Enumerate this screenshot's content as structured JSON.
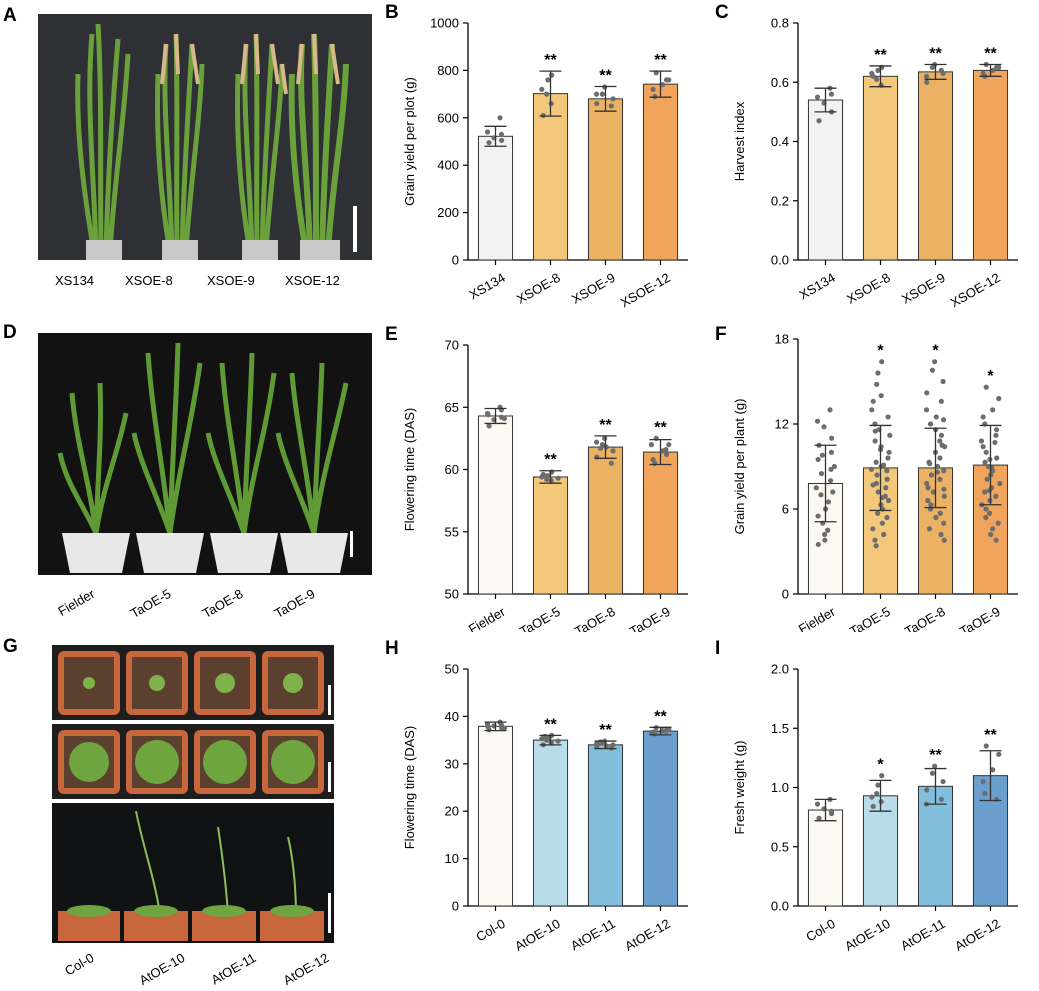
{
  "panels": {
    "A": {
      "letter": "A",
      "labels": [
        "XS134",
        "XSOE-8",
        "XSOE-9",
        "XSOE-12"
      ]
    },
    "D": {
      "letter": "D",
      "labels": [
        "Fielder",
        "TaOE-5",
        "TaOE-8",
        "TaOE-9"
      ]
    },
    "G": {
      "letter": "G",
      "labels": [
        "Col-0",
        "AtOE-10",
        "AtOE-11",
        "AtOE-12"
      ]
    }
  },
  "colors": {
    "rice": [
      "#f2f2f2",
      "#f4c87a",
      "#ecb264",
      "#f0a45c"
    ],
    "wheat": [
      "#fbf9f1",
      "#f4c87a",
      "#ecb264",
      "#f0a45c"
    ],
    "arabidopsis": [
      "#fbf9f1",
      "#b9dcea",
      "#82bfdd",
      "#6a9fce"
    ],
    "photo_bg": "#2d2f34",
    "soil": "#6b4a32",
    "pot_orange": "#c8663e",
    "leaf": "#5f9a35"
  },
  "chart_data": [
    {
      "id": "B",
      "letter": "B",
      "type": "bar",
      "ylabel": "Grain yield per plot (g)",
      "ylim": [
        0,
        1000
      ],
      "yticks": [
        0,
        200,
        400,
        600,
        800,
        1000
      ],
      "categories": [
        "XS134",
        "XSOE-8",
        "XSOE-9",
        "XSOE-12"
      ],
      "values": [
        522,
        702,
        680,
        742
      ],
      "errors": [
        42,
        95,
        52,
        55
      ],
      "significance": [
        "",
        "**",
        "**",
        "**"
      ],
      "points": [
        [
          600,
          540,
          515,
          505,
          495,
          530
        ],
        [
          780,
          760,
          700,
          660,
          610,
          720
        ],
        [
          730,
          700,
          680,
          660,
          650,
          700
        ],
        [
          790,
          760,
          740,
          720,
          690,
          760
        ]
      ]
    },
    {
      "id": "C",
      "letter": "C",
      "type": "bar",
      "ylabel": "Harvest index",
      "ylim": [
        0,
        0.8
      ],
      "yticks": [
        "0.0",
        "0.2",
        "0.4",
        "0.6",
        "0.8"
      ],
      "categories": [
        "XS134",
        "XSOE-8",
        "XSOE-9",
        "XSOE-12"
      ],
      "values": [
        0.54,
        0.62,
        0.635,
        0.64
      ],
      "errors": [
        0.04,
        0.035,
        0.025,
        0.02
      ],
      "significance": [
        "",
        "**",
        "**",
        "**"
      ],
      "points": [
        [
          0.58,
          0.55,
          0.53,
          0.5,
          0.47,
          0.56
        ],
        [
          0.65,
          0.64,
          0.61,
          0.59,
          0.62,
          0.63
        ],
        [
          0.66,
          0.65,
          0.63,
          0.6,
          0.64,
          0.62
        ],
        [
          0.66,
          0.65,
          0.64,
          0.63,
          0.62,
          0.65
        ]
      ]
    },
    {
      "id": "E",
      "letter": "E",
      "type": "bar",
      "ylabel": "Flowering time (DAS)",
      "ylim": [
        50,
        70
      ],
      "yticks": [
        50,
        55,
        60,
        65,
        70
      ],
      "categories": [
        "Fielder",
        "TaOE-5",
        "TaOE-8",
        "TaOE-9"
      ],
      "values": [
        64.3,
        59.4,
        61.8,
        61.4
      ],
      "errors": [
        0.6,
        0.5,
        0.9,
        1.0
      ],
      "significance": [
        "",
        "**",
        "**",
        "**"
      ],
      "points": [
        [
          65,
          64.5,
          64,
          64.2,
          63.5,
          64.8,
          64.4,
          64.1
        ],
        [
          59.8,
          59.5,
          59.2,
          59.1,
          59.6,
          59.4,
          59.3,
          59.5
        ],
        [
          62.5,
          62,
          61.5,
          61,
          60.5,
          62.2,
          61.8,
          61.7
        ],
        [
          62.5,
          62,
          61.5,
          60.8,
          60.5,
          61.2,
          61.6,
          62
        ]
      ]
    },
    {
      "id": "F",
      "letter": "F",
      "type": "bar",
      "ylabel": "Grain yield per plant (g)",
      "ylim": [
        0,
        18
      ],
      "yticks": [
        0,
        6,
        12,
        18
      ],
      "categories": [
        "Fielder",
        "TaOE-5",
        "TaOE-8",
        "TaOE-9"
      ],
      "values": [
        7.8,
        8.9,
        8.9,
        9.1
      ],
      "errors": [
        2.7,
        3.0,
        2.8,
        2.8
      ],
      "significance": [
        "",
        "*",
        "*",
        "*"
      ],
      "points": [
        [
          13,
          12.2,
          11.8,
          11,
          10.5,
          10,
          9.5,
          9,
          8.5,
          8,
          7.5,
          7,
          6.5,
          6,
          5.5,
          5,
          4.5,
          4.2,
          3.8,
          3.5,
          8.8,
          7.2,
          9.8
        ],
        [
          16.4,
          15.6,
          14.8,
          14,
          13.6,
          13,
          12.5,
          12,
          11.6,
          11.2,
          10.8,
          10.4,
          10,
          9.6,
          9.3,
          9,
          8.7,
          8.4,
          8.1,
          7.8,
          7.5,
          7.2,
          6.9,
          6.6,
          6.3,
          6,
          5.7,
          5.4,
          5,
          4.6,
          4.2,
          3.8,
          3.4,
          9.1,
          8.8,
          10.2,
          7.7,
          6.8,
          11.5
        ],
        [
          16.4,
          15.8,
          15,
          14.2,
          13.6,
          13,
          12.5,
          12,
          11.6,
          11.2,
          10.8,
          10.4,
          10,
          9.6,
          9.3,
          9,
          8.7,
          8.4,
          8.1,
          7.8,
          7.5,
          7.2,
          6.9,
          6.6,
          6.3,
          6,
          5.7,
          5.4,
          5,
          4.6,
          4.2,
          3.8,
          9.2,
          8.6,
          10.5,
          7.4,
          12.3
        ],
        [
          14.6,
          13.8,
          13,
          12.5,
          12,
          11.6,
          11.2,
          10.8,
          10.4,
          10,
          9.6,
          9.3,
          9,
          8.7,
          8.4,
          8.1,
          7.8,
          7.5,
          7.2,
          6.9,
          6.6,
          6.3,
          6,
          5.7,
          5.4,
          5,
          4.6,
          4.2,
          3.8,
          9.5,
          8.9,
          10.7,
          7.3
        ]
      ]
    },
    {
      "id": "H",
      "letter": "H",
      "type": "bar",
      "ylabel": "Flowering time (DAS)",
      "ylim": [
        0,
        50
      ],
      "yticks": [
        0,
        10,
        20,
        30,
        40,
        50
      ],
      "categories": [
        "Col-0",
        "AtOE-10",
        "AtOE-11",
        "AtOE-12"
      ],
      "values": [
        37.9,
        35.0,
        34.0,
        36.9
      ],
      "errors": [
        0.9,
        1.0,
        0.8,
        0.8
      ],
      "significance": [
        "",
        "**",
        "**",
        "**"
      ],
      "points": [
        [
          38.8,
          38.4,
          38,
          37.6,
          37.2,
          38.2,
          37.8,
          37.5
        ],
        [
          36,
          35.5,
          35,
          34.5,
          34,
          35.3,
          34.8,
          35.8
        ],
        [
          34.8,
          34.4,
          34,
          33.6,
          33.3,
          34.2,
          33.8,
          34.6
        ],
        [
          37.6,
          37.3,
          37,
          36.7,
          36.3,
          37.2,
          36.9,
          36.6
        ]
      ]
    },
    {
      "id": "I",
      "letter": "I",
      "type": "bar",
      "ylabel": "Fresh weight (g)",
      "ylim": [
        0,
        2.0
      ],
      "yticks": [
        "0.0",
        "0.5",
        "1.0",
        "1.5",
        "2.0"
      ],
      "categories": [
        "Col-0",
        "AtOE-10",
        "AtOE-11",
        "AtOE-12"
      ],
      "values": [
        0.81,
        0.93,
        1.01,
        1.1
      ],
      "errors": [
        0.09,
        0.13,
        0.15,
        0.21
      ],
      "significance": [
        "",
        "*",
        "**",
        "**"
      ],
      "points": [
        [
          0.9,
          0.86,
          0.82,
          0.78,
          0.74,
          0.8
        ],
        [
          1.1,
          1.02,
          0.95,
          0.88,
          0.84,
          0.92
        ],
        [
          1.18,
          1.12,
          1.05,
          0.98,
          0.9,
          0.86
        ],
        [
          1.35,
          1.28,
          1.15,
          1.05,
          0.95,
          0.9
        ]
      ]
    }
  ]
}
